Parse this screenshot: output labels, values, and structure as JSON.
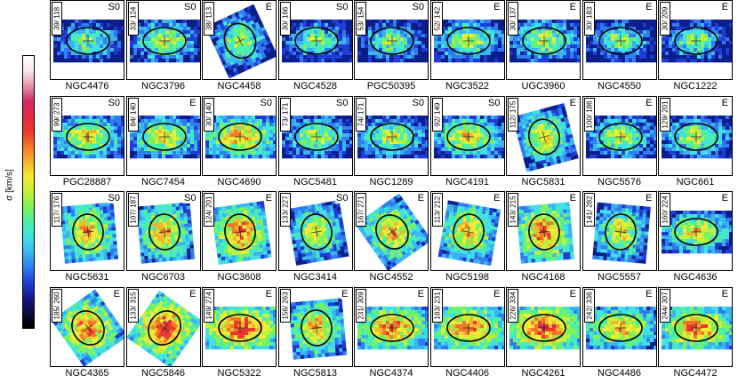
{
  "colorbar": {
    "label": "σ [km/s]",
    "colors": [
      "#000000",
      "#0b0c3d",
      "#151a8a",
      "#1f3dd6",
      "#2f7df0",
      "#39b6f2",
      "#41e0e6",
      "#4af0a8",
      "#7cf25a",
      "#c4f03c",
      "#f2ea34",
      "#f5b52e",
      "#f3772a",
      "#ea3b2c",
      "#e02a3f",
      "#d12a63",
      "#e694a8",
      "#fbe6ea",
      "#ffffff"
    ]
  },
  "panels": [
    {
      "name": "NGC4476",
      "type": "S0",
      "range": "39/ 118",
      "shape": "wide",
      "rot": 0
    },
    {
      "name": "NGC3796",
      "type": "S0",
      "range": "33/ 124",
      "shape": "wide",
      "rot": 0
    },
    {
      "name": "NGC4458",
      "type": "E",
      "range": "38/ 113",
      "shape": "rot",
      "rot": -25
    },
    {
      "name": "NGC4528",
      "type": "S0",
      "range": "30/ 166",
      "shape": "wide",
      "rot": 0
    },
    {
      "name": "PGC50395",
      "type": "S0",
      "range": "53/ 154",
      "shape": "wide",
      "rot": 0
    },
    {
      "name": "NGC3522",
      "type": "E",
      "range": "52/ 142",
      "shape": "wide",
      "rot": 0
    },
    {
      "name": "UGC3960",
      "type": "E",
      "range": "30/ 137",
      "shape": "wide",
      "rot": 0
    },
    {
      "name": "NGC4550",
      "type": "E",
      "range": "30/ 183",
      "shape": "wide",
      "rot": 0
    },
    {
      "name": "NGC1222",
      "type": "E",
      "range": "30/ 209",
      "shape": "wide",
      "rot": 0
    },
    {
      "name": "PGC28887",
      "type": "S0",
      "range": "99/ 273",
      "shape": "wide",
      "rot": 0
    },
    {
      "name": "NGC7454",
      "type": "E",
      "range": "84/ 140",
      "shape": "wide",
      "rot": 0
    },
    {
      "name": "NGC4690",
      "type": "S0",
      "range": "30/ 140",
      "shape": "wide",
      "rot": 0
    },
    {
      "name": "NGC5481",
      "type": "S0",
      "range": "73/ 171",
      "shape": "wide",
      "rot": 0
    },
    {
      "name": "NGC1289",
      "type": "S0",
      "range": "74/ 171",
      "shape": "wide",
      "rot": 0
    },
    {
      "name": "NGC4191",
      "type": "S0",
      "range": "92/ 149",
      "shape": "wide",
      "rot": 0
    },
    {
      "name": "NGC5831",
      "type": "E",
      "range": "112/ 175",
      "shape": "rot",
      "rot": -15
    },
    {
      "name": "NGC5576",
      "type": "E",
      "range": "100/ 186",
      "shape": "wide",
      "rot": 0
    },
    {
      "name": "NGC661",
      "type": "E",
      "range": "129/ 201",
      "shape": "wide",
      "rot": 0
    },
    {
      "name": "NGC5631",
      "type": "S0",
      "range": "117/ 176",
      "shape": "rot",
      "rot": -5
    },
    {
      "name": "NGC6703",
      "type": "S0",
      "range": "107/ 187",
      "shape": "rot",
      "rot": -5
    },
    {
      "name": "NGC3608",
      "type": "E",
      "range": "124/ 201",
      "shape": "rot",
      "rot": -8
    },
    {
      "name": "NGC3414",
      "type": "S0",
      "range": "133/ 227",
      "shape": "rot",
      "rot": -10
    },
    {
      "name": "NGC4552",
      "type": "E",
      "range": "167/ 271",
      "shape": "rot",
      "rot": -35
    },
    {
      "name": "NGC5198",
      "type": "E",
      "range": "113/ 212",
      "shape": "rot",
      "rot": 10
    },
    {
      "name": "NGC4168",
      "type": "E",
      "range": "143/ 215",
      "shape": "rot",
      "rot": -5
    },
    {
      "name": "NGC5557",
      "type": "E",
      "range": "141/ 282",
      "shape": "rot",
      "rot": 5
    },
    {
      "name": "NGC4636",
      "type": "E",
      "range": "160/ 224",
      "shape": "wide",
      "rot": 0
    },
    {
      "name": "NGC4365",
      "type": "E",
      "range": "185/ 260",
      "shape": "rot",
      "rot": -35
    },
    {
      "name": "NGC5846",
      "type": "E",
      "range": "133/ 315",
      "shape": "rot",
      "rot": 35
    },
    {
      "name": "NGC5322",
      "type": "E",
      "range": "149/ 274",
      "shape": "wide",
      "rot": 0
    },
    {
      "name": "NGC5813",
      "type": "E",
      "range": "156/ 263",
      "shape": "rot",
      "rot": -5
    },
    {
      "name": "NGC4374",
      "type": "E",
      "range": "231/ 309",
      "shape": "wide",
      "rot": 0
    },
    {
      "name": "NGC4406",
      "type": "E",
      "range": "183/ 231",
      "shape": "wide",
      "rot": 0
    },
    {
      "name": "NGC4261",
      "type": "E",
      "range": "226/ 334",
      "shape": "wide",
      "rot": 0
    },
    {
      "name": "NGC4486",
      "type": "E",
      "range": "242/ 336",
      "shape": "wide",
      "rot": 0
    },
    {
      "name": "NGC4472",
      "type": "E",
      "range": "244/ 307",
      "shape": "wide",
      "rot": 0
    }
  ]
}
